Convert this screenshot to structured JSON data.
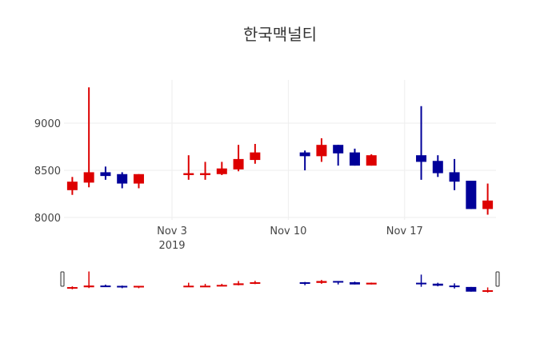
{
  "chart_data": {
    "type": "candlestick",
    "title": "한국맥널티",
    "xlabel": "",
    "ylabel": "",
    "ylim": [
      7975,
      9458
    ],
    "xlim": [
      "2019-10-27 12:00",
      "2019-11-22 12:00"
    ],
    "yticks": [
      8000,
      8500,
      9000
    ],
    "ytick_labels": [
      "8000",
      "8500",
      "9000"
    ],
    "xticks": [
      "2019-11-03",
      "2019-11-10",
      "2019-11-17"
    ],
    "xtick_labels": [
      "Nov 3",
      "Nov 10",
      "Nov 17"
    ],
    "xtick_sublabel": "2019",
    "grid": true,
    "increasing_color": "#dd0000",
    "decreasing_color": "#000099",
    "rangeslider": true,
    "data": [
      {
        "date": "2019-10-28",
        "open": 8290,
        "high": 8430,
        "low": 8240,
        "close": 8380
      },
      {
        "date": "2019-10-29",
        "open": 8370,
        "high": 9380,
        "low": 8320,
        "close": 8480
      },
      {
        "date": "2019-10-30",
        "open": 8480,
        "high": 8540,
        "low": 8400,
        "close": 8440
      },
      {
        "date": "2019-10-31",
        "open": 8460,
        "high": 8480,
        "low": 8310,
        "close": 8360
      },
      {
        "date": "2019-11-01",
        "open": 8360,
        "high": 8460,
        "low": 8310,
        "close": 8460
      },
      {
        "date": "2019-11-04",
        "open": 8450,
        "high": 8660,
        "low": 8400,
        "close": 8470
      },
      {
        "date": "2019-11-05",
        "open": 8450,
        "high": 8590,
        "low": 8400,
        "close": 8470
      },
      {
        "date": "2019-11-06",
        "open": 8460,
        "high": 8590,
        "low": 8450,
        "close": 8520
      },
      {
        "date": "2019-11-07",
        "open": 8510,
        "high": 8770,
        "low": 8490,
        "close": 8620
      },
      {
        "date": "2019-11-08",
        "open": 8610,
        "high": 8780,
        "low": 8570,
        "close": 8690
      },
      {
        "date": "2019-11-11",
        "open": 8690,
        "high": 8710,
        "low": 8500,
        "close": 8650
      },
      {
        "date": "2019-11-12",
        "open": 8650,
        "high": 8840,
        "low": 8590,
        "close": 8770
      },
      {
        "date": "2019-11-13",
        "open": 8770,
        "high": 8770,
        "low": 8550,
        "close": 8680
      },
      {
        "date": "2019-11-14",
        "open": 8690,
        "high": 8730,
        "low": 8550,
        "close": 8550
      },
      {
        "date": "2019-11-15",
        "open": 8550,
        "high": 8670,
        "low": 8550,
        "close": 8660
      },
      {
        "date": "2019-11-18",
        "open": 8660,
        "high": 9180,
        "low": 8400,
        "close": 8590
      },
      {
        "date": "2019-11-19",
        "open": 8600,
        "high": 8660,
        "low": 8430,
        "close": 8470
      },
      {
        "date": "2019-11-20",
        "open": 8480,
        "high": 8620,
        "low": 8290,
        "close": 8380
      },
      {
        "date": "2019-11-21",
        "open": 8390,
        "high": 8390,
        "low": 8090,
        "close": 8090
      },
      {
        "date": "2019-11-22",
        "open": 8090,
        "high": 8360,
        "low": 8030,
        "close": 8180
      }
    ]
  }
}
